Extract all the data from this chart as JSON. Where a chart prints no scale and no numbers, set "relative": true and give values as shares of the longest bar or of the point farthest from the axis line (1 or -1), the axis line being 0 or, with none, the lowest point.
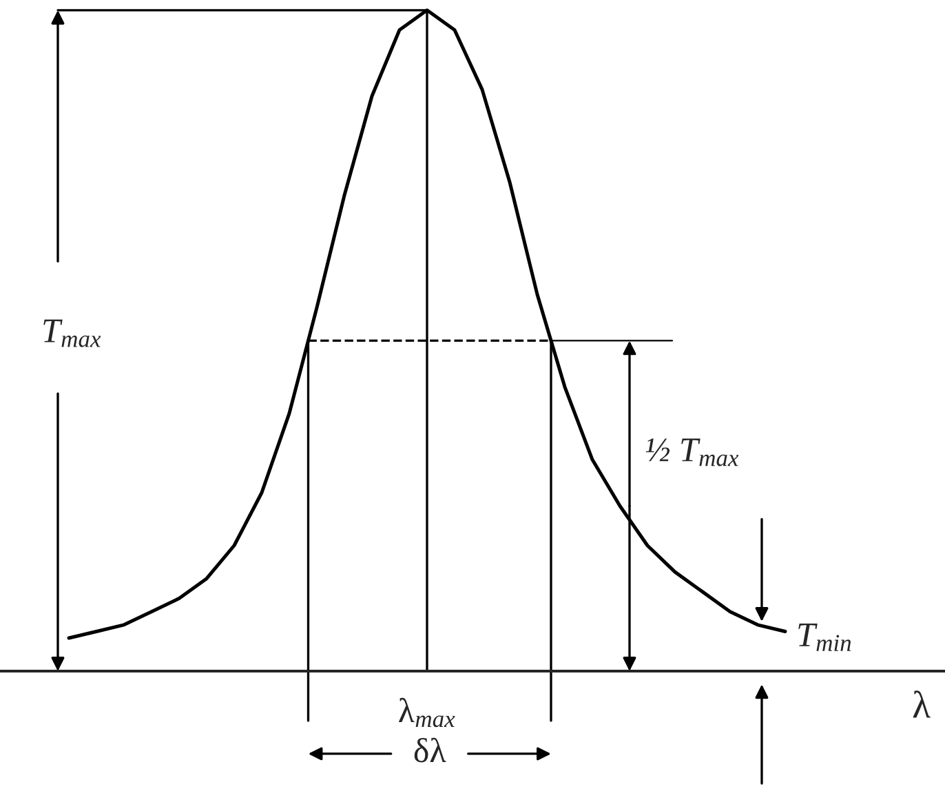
{
  "chart_data": {
    "type": "line",
    "relative": true,
    "xlabel": "λ",
    "categories": [
      null,
      null,
      null,
      null,
      null,
      null,
      null,
      null,
      null,
      null,
      null,
      null,
      null,
      null,
      null,
      null,
      null,
      null,
      null,
      null,
      null,
      null,
      null,
      null,
      null,
      null,
      null
    ],
    "series": [
      {
        "color": "#000000",
        "values": [
          0.05,
          0.06,
          0.07,
          0.09,
          0.11,
          0.14,
          0.19,
          0.27,
          0.39,
          0.55,
          0.72,
          0.87,
          0.97,
          1.0,
          0.97,
          0.88,
          0.74,
          0.57,
          0.43,
          0.32,
          0.25,
          0.19,
          0.15,
          0.12,
          0.09,
          0.07,
          0.06
        ]
      }
    ],
    "annotations": [
      "T$_{max}$",
      "½ T$_{max}$",
      "T$_{min}$",
      "λ$_{max}$",
      "δλ"
    ],
    "ref_lines": [
      {
        "axis": "y",
        "value": 0.5,
        "line_style": "dashed"
      },
      {
        "axis": "y",
        "value": 0.5,
        "line_style": "solid"
      }
    ],
    "marker": "none",
    "line_style": "solid",
    "grid": false,
    "legend": false
  }
}
